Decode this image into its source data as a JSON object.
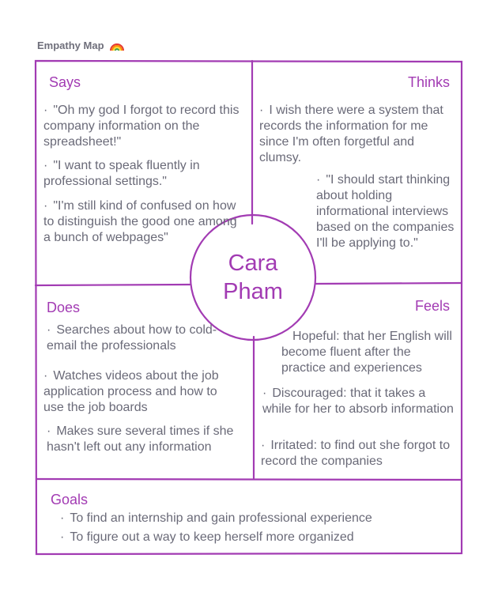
{
  "board_title": "Empathy Map",
  "icons": {
    "title_icon": "rainbow-emoji-icon"
  },
  "colors": {
    "accent": "#a23bb3",
    "text": "#6a6a78",
    "title": "#6f6f7b"
  },
  "persona": {
    "first": "Cara",
    "last": "Pham"
  },
  "says": {
    "heading": "Says",
    "items": [
      "\"Oh my god I forgot to record this company information on the spreadsheet!\"",
      "\"I want to speak fluently in professional settings.\"",
      "\"I'm still kind of confused on how to distinguish the good one among a bunch of webpages\""
    ]
  },
  "thinks": {
    "heading": "Thinks",
    "items": [
      "I wish there were a system that records the information for me since I'm often forgetful and clumsy.",
      "\"I should start thinking about holding informational interviews based on the companies I'll be applying to.\""
    ]
  },
  "does": {
    "heading": "Does",
    "items": [
      "Searches about how to cold-email the professionals",
      "Watches videos about the job application process and how to use the job boards",
      "Makes sure several times if she hasn't left out any information"
    ]
  },
  "feels": {
    "heading": "Feels",
    "items": [
      "Hopeful: that her English will become fluent after the practice and experiences",
      "Discouraged: that it takes a while for her to absorb information",
      "Irritated: to find out she forgot to record the companies"
    ]
  },
  "goals": {
    "heading": "Goals",
    "items": [
      "To find an internship and gain professional experience",
      "To figure out a way to keep herself more organized"
    ]
  }
}
